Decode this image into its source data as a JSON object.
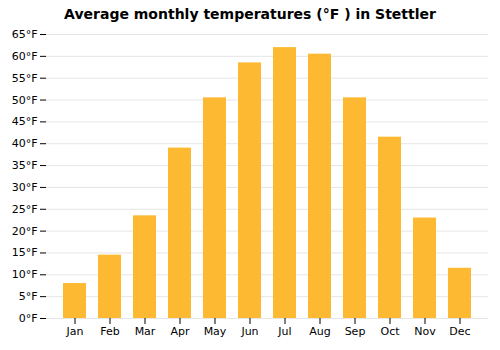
{
  "chart_data": {
    "type": "bar",
    "title": "Average monthly temperatures (°F ) in Stettler",
    "categories": [
      "Jan",
      "Feb",
      "Mar",
      "Apr",
      "May",
      "Jun",
      "Jul",
      "Aug",
      "Sep",
      "Oct",
      "Nov",
      "Dec"
    ],
    "values": [
      8,
      14.5,
      23.5,
      39,
      50.5,
      58.5,
      62,
      60.5,
      50.5,
      41.5,
      23,
      11.5
    ],
    "color": "#FDB931",
    "ylim": [
      0,
      65
    ],
    "yticks": [
      {
        "value": 0,
        "label": "0°F"
      },
      {
        "value": 5,
        "label": "5°F"
      },
      {
        "value": 10,
        "label": "10°F"
      },
      {
        "value": 15,
        "label": "15°F"
      },
      {
        "value": 20,
        "label": "20°F"
      },
      {
        "value": 25,
        "label": "25°F"
      },
      {
        "value": 30,
        "label": "30°F"
      },
      {
        "value": 35,
        "label": "35°F"
      },
      {
        "value": 40,
        "label": "40°F"
      },
      {
        "value": 45,
        "label": "45°F"
      },
      {
        "value": 50,
        "label": "50°F"
      },
      {
        "value": 55,
        "label": "55°F"
      },
      {
        "value": 60,
        "label": "60°F"
      },
      {
        "value": 65,
        "label": "65°F"
      }
    ],
    "grid": true
  }
}
